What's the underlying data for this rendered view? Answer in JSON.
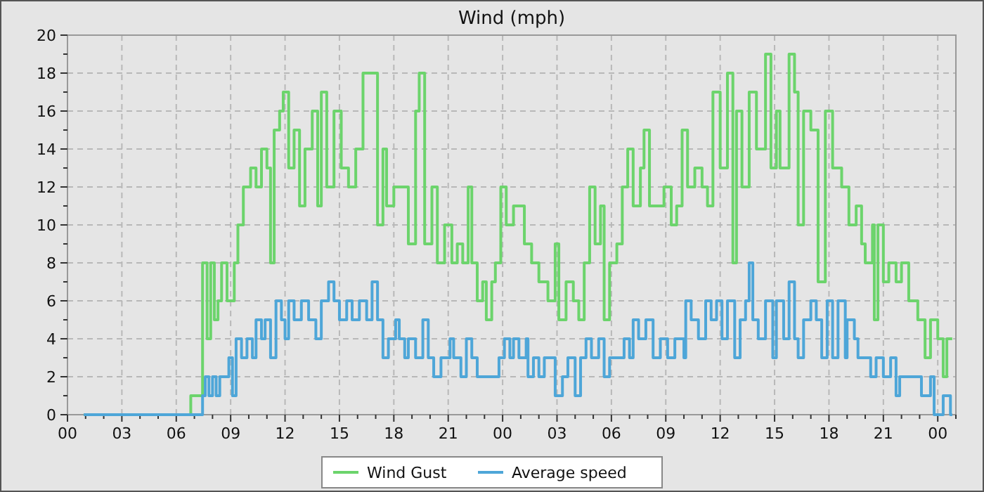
{
  "chart_data": {
    "type": "step",
    "title": "Wind (mph)",
    "xlim": [
      0,
      49
    ],
    "ylim": [
      0,
      20
    ],
    "xticks": [
      {
        "value": 0,
        "label": "00"
      },
      {
        "value": 1,
        "label": null
      },
      {
        "value": 2,
        "label": null
      },
      {
        "value": 3,
        "label": "03"
      },
      {
        "value": 4,
        "label": null
      },
      {
        "value": 5,
        "label": null
      },
      {
        "value": 6,
        "label": "06"
      },
      {
        "value": 7,
        "label": null
      },
      {
        "value": 8,
        "label": null
      },
      {
        "value": 9,
        "label": "09"
      },
      {
        "value": 10,
        "label": null
      },
      {
        "value": 11,
        "label": null
      },
      {
        "value": 12,
        "label": "12"
      },
      {
        "value": 13,
        "label": null
      },
      {
        "value": 14,
        "label": null
      },
      {
        "value": 15,
        "label": "15"
      },
      {
        "value": 16,
        "label": null
      },
      {
        "value": 17,
        "label": null
      },
      {
        "value": 18,
        "label": "18"
      },
      {
        "value": 19,
        "label": null
      },
      {
        "value": 20,
        "label": null
      },
      {
        "value": 21,
        "label": "21"
      },
      {
        "value": 22,
        "label": null
      },
      {
        "value": 23,
        "label": null
      },
      {
        "value": 24,
        "label": "00"
      },
      {
        "value": 25,
        "label": null
      },
      {
        "value": 26,
        "label": null
      },
      {
        "value": 27,
        "label": "03"
      },
      {
        "value": 28,
        "label": null
      },
      {
        "value": 29,
        "label": null
      },
      {
        "value": 30,
        "label": "06"
      },
      {
        "value": 31,
        "label": null
      },
      {
        "value": 32,
        "label": null
      },
      {
        "value": 33,
        "label": "09"
      },
      {
        "value": 34,
        "label": null
      },
      {
        "value": 35,
        "label": null
      },
      {
        "value": 36,
        "label": "12"
      },
      {
        "value": 37,
        "label": null
      },
      {
        "value": 38,
        "label": null
      },
      {
        "value": 39,
        "label": "15"
      },
      {
        "value": 40,
        "label": null
      },
      {
        "value": 41,
        "label": null
      },
      {
        "value": 42,
        "label": "18"
      },
      {
        "value": 43,
        "label": null
      },
      {
        "value": 44,
        "label": null
      },
      {
        "value": 45,
        "label": "21"
      },
      {
        "value": 46,
        "label": null
      },
      {
        "value": 47,
        "label": null
      },
      {
        "value": 48,
        "label": "00"
      },
      {
        "value": 49,
        "label": null
      }
    ],
    "yticks": [
      0,
      {
        "value": 1,
        "label": null
      },
      2,
      {
        "value": 3,
        "label": null
      },
      4,
      {
        "value": 5,
        "label": null
      },
      6,
      {
        "value": 7,
        "label": null
      },
      8,
      {
        "value": 9,
        "label": null
      },
      10,
      {
        "value": 11,
        "label": null
      },
      12,
      {
        "value": 13,
        "label": null
      },
      14,
      {
        "value": 15,
        "label": null
      },
      16,
      {
        "value": 17,
        "label": null
      },
      18,
      {
        "value": 19,
        "label": null
      },
      20
    ],
    "grid": true,
    "legend": "bottom",
    "series": [
      {
        "name": "Wind Gust",
        "color": "#6cd46c",
        "x": [
          0.9,
          6.8,
          7.45,
          7.7,
          7.9,
          8.1,
          8.3,
          8.5,
          8.8,
          9.2,
          9.4,
          9.7,
          10.1,
          10.4,
          10.7,
          11.0,
          11.2,
          11.4,
          11.7,
          11.9,
          12.2,
          12.5,
          12.8,
          13.1,
          13.5,
          13.8,
          14.0,
          14.3,
          14.7,
          15.1,
          15.5,
          15.9,
          16.3,
          16.8,
          17.1,
          17.4,
          17.6,
          18.0,
          18.5,
          18.8,
          19.2,
          19.4,
          19.7,
          20.1,
          20.4,
          20.8,
          21.2,
          21.5,
          21.8,
          22.1,
          22.3,
          22.6,
          22.9,
          23.1,
          23.4,
          23.6,
          23.9,
          24.2,
          24.6,
          25.2,
          25.6,
          26.0,
          26.5,
          26.9,
          27.1,
          27.5,
          27.9,
          28.2,
          28.5,
          28.8,
          29.1,
          29.4,
          29.6,
          29.9,
          30.3,
          30.6,
          30.9,
          31.2,
          31.6,
          31.8,
          32.1,
          32.5,
          32.9,
          33.3,
          33.6,
          33.9,
          34.2,
          34.6,
          35.0,
          35.3,
          35.6,
          36.0,
          36.4,
          36.7,
          36.9,
          37.2,
          37.6,
          38.0,
          38.5,
          38.8,
          39.1,
          39.3,
          39.8,
          40.1,
          40.3,
          40.6,
          41.0,
          41.4,
          41.8,
          42.2,
          42.7,
          43.1,
          43.5,
          43.8,
          44.0,
          44.4,
          44.5,
          44.7,
          45.0,
          45.3,
          45.7,
          46.0,
          46.4,
          46.9,
          47.3,
          47.6,
          48.0,
          48.3,
          48.5,
          48.8
        ],
        "values": [
          0,
          1,
          8,
          4,
          8,
          5,
          6,
          8,
          6,
          8,
          10,
          12,
          13,
          12,
          14,
          13,
          8,
          15,
          16,
          17,
          13,
          15,
          11,
          14,
          16,
          11,
          17,
          12,
          16,
          13,
          12,
          14,
          18,
          18,
          10,
          14,
          11,
          12,
          12,
          9,
          16,
          18,
          9,
          12,
          8,
          10,
          8,
          9,
          8,
          12,
          8,
          6,
          7,
          5,
          7,
          8,
          12,
          10,
          11,
          9,
          8,
          7,
          6,
          9,
          5,
          7,
          6,
          5,
          8,
          12,
          9,
          11,
          5,
          8,
          9,
          12,
          14,
          11,
          13,
          15,
          11,
          11,
          12,
          10,
          11,
          15,
          12,
          13,
          12,
          11,
          17,
          13,
          18,
          8,
          16,
          12,
          17,
          14,
          19,
          13,
          16,
          13,
          19,
          17,
          10,
          16,
          15,
          7,
          16,
          13,
          12,
          10,
          11,
          9,
          8,
          10,
          5,
          10,
          7,
          8,
          7,
          8,
          6,
          5,
          3,
          5,
          4,
          2,
          4,
          4
        ]
      },
      {
        "name": "Average speed",
        "color": "#4ea6d8",
        "x": [
          0.9,
          7.45,
          7.6,
          7.8,
          8.0,
          8.2,
          8.4,
          8.9,
          9.1,
          9.3,
          9.6,
          9.9,
          10.2,
          10.4,
          10.7,
          10.9,
          11.2,
          11.5,
          11.8,
          12.0,
          12.2,
          12.5,
          12.9,
          13.3,
          13.7,
          14.0,
          14.4,
          14.7,
          15.0,
          15.4,
          15.7,
          16.1,
          16.5,
          16.8,
          17.1,
          17.4,
          17.7,
          18.1,
          18.3,
          18.6,
          18.8,
          19.2,
          19.6,
          19.9,
          20.2,
          20.6,
          21.1,
          21.3,
          21.7,
          22.0,
          22.3,
          22.6,
          23.8,
          24.1,
          24.4,
          24.6,
          24.9,
          25.3,
          25.4,
          25.7,
          26.0,
          26.3,
          26.9,
          27.3,
          27.6,
          28.0,
          28.3,
          28.6,
          28.9,
          29.3,
          29.6,
          29.9,
          30.7,
          31.0,
          31.2,
          31.5,
          31.9,
          32.3,
          32.7,
          33.1,
          33.5,
          34.0,
          34.1,
          34.4,
          34.8,
          35.2,
          35.5,
          35.8,
          36.1,
          36.4,
          36.8,
          37.1,
          37.4,
          37.6,
          37.8,
          38.1,
          38.5,
          38.9,
          39.1,
          39.5,
          39.8,
          40.1,
          40.3,
          40.6,
          41.0,
          41.3,
          41.6,
          41.9,
          42.2,
          42.5,
          42.9,
          43.0,
          43.4,
          43.6,
          44.3,
          44.6,
          45.0,
          45.4,
          45.7,
          45.9,
          47.1,
          47.6,
          47.8,
          48.3,
          48.7,
          48.8
        ],
        "values": [
          0,
          1,
          2,
          1,
          2,
          1,
          2,
          3,
          1,
          4,
          3,
          4,
          3,
          5,
          4,
          5,
          3,
          6,
          5,
          4,
          6,
          5,
          6,
          5,
          4,
          6,
          7,
          6,
          5,
          6,
          5,
          6,
          5,
          7,
          5,
          3,
          4,
          5,
          4,
          3,
          4,
          3,
          5,
          3,
          2,
          3,
          4,
          3,
          2,
          4,
          3,
          2,
          3,
          4,
          3,
          4,
          3,
          4,
          2,
          3,
          2,
          3,
          1,
          2,
          3,
          1,
          3,
          4,
          3,
          4,
          2,
          3,
          4,
          3,
          5,
          4,
          5,
          3,
          4,
          3,
          4,
          3,
          6,
          5,
          4,
          6,
          5,
          6,
          4,
          6,
          3,
          5,
          6,
          8,
          5,
          4,
          6,
          3,
          6,
          4,
          7,
          4,
          3,
          5,
          6,
          5,
          3,
          6,
          3,
          6,
          3,
          5,
          4,
          3,
          2,
          3,
          2,
          3,
          1,
          2,
          1,
          2,
          0,
          1,
          0,
          0
        ]
      }
    ]
  }
}
